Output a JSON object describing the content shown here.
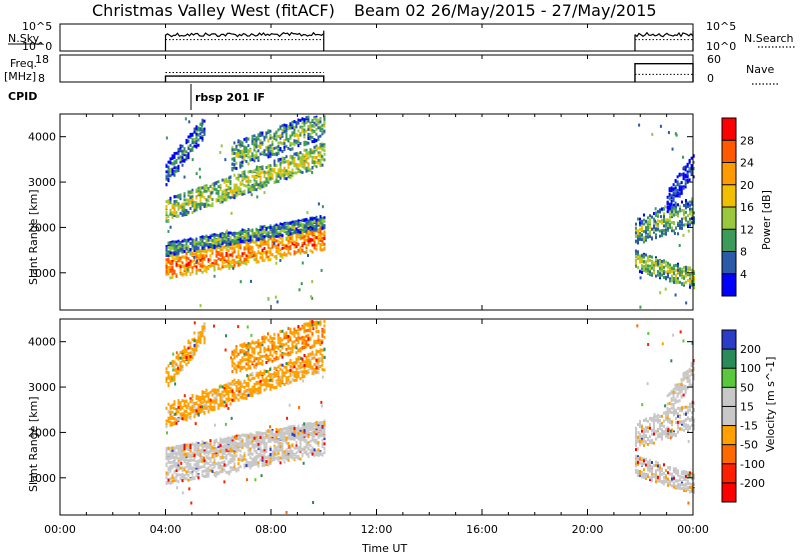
{
  "chart_data": {
    "type": "heatmap",
    "title": "Christmas Valley West (fitACF)",
    "subtitle": "Beam 02 26/May/2015 - 27/May/2015",
    "xlabel": "Time UT",
    "xticks": [
      "00:00",
      "04:00",
      "08:00",
      "12:00",
      "16:00",
      "20:00",
      "00:00"
    ],
    "xlim_hours": [
      0,
      24
    ],
    "cpid_label": "CPID",
    "cpid_text": "rbsp 201 IF",
    "panels": {
      "nsky": {
        "left_label": "N.Sky",
        "right_label": "N.Search",
        "left_ticks": [
          "10^5",
          "10^0"
        ],
        "right_ticks": [
          "10^5",
          "10^0"
        ],
        "segments": [
          {
            "start": 4.0,
            "end": 10.0,
            "level": 0.32
          },
          {
            "start": 21.8,
            "end": 24.0,
            "level": 0.32
          }
        ]
      },
      "freq": {
        "left_label": "Freq.",
        "left_unit": "[MHz]",
        "right_label": "Nave",
        "left_ticks": [
          "18",
          "8"
        ],
        "right_ticks": [
          "60",
          "0"
        ],
        "segments": [
          {
            "start": 4.0,
            "end": 10.0,
            "freq": 10.2,
            "nave": 21
          },
          {
            "start": 21.8,
            "end": 24.0,
            "freq": 14.8,
            "nave": 17
          }
        ]
      },
      "power": {
        "ylabel": "Slant Range [km]",
        "yticks": [
          1000,
          2000,
          3000,
          4000
        ],
        "ylim": [
          180,
          4500
        ],
        "colorbar_label": "Power [dB]",
        "colorbar_ticks": [
          "28",
          "24",
          "20",
          "16",
          "12",
          "8",
          "4"
        ],
        "colorbar_colors": [
          "#ff0000",
          "#ff5a00",
          "#ff9a00",
          "#f0c000",
          "#9ac83c",
          "#3c9a5a",
          "#2a5aa8",
          "#0000ff"
        ],
        "bands": [
          {
            "t0": 4.0,
            "t1": 10.0,
            "r0": 1150,
            "r1": 1800,
            "w": 260,
            "v": 26
          },
          {
            "t0": 4.0,
            "t1": 10.0,
            "r0": 1550,
            "r1": 2150,
            "w": 140,
            "v": 12
          },
          {
            "t0": 4.0,
            "t1": 10.0,
            "r0": 2400,
            "r1": 3650,
            "w": 250,
            "v": 17
          },
          {
            "t0": 6.5,
            "t1": 10.0,
            "r0": 3600,
            "r1": 4300,
            "w": 300,
            "v": 14
          },
          {
            "t0": 4.0,
            "t1": 5.5,
            "r0": 3200,
            "r1": 4300,
            "w": 250,
            "v": 10
          },
          {
            "t0": 21.8,
            "t1": 24.0,
            "r0": 1950,
            "r1": 2400,
            "w": 300,
            "v": 14
          },
          {
            "t0": 21.8,
            "t1": 24.0,
            "r0": 1300,
            "r1": 900,
            "w": 220,
            "v": 16
          },
          {
            "t0": 23.0,
            "t1": 24.0,
            "r0": 2600,
            "r1": 3400,
            "w": 250,
            "v": 6
          }
        ]
      },
      "velocity": {
        "ylabel": "Slant Range [km]",
        "yticks": [
          1000,
          2000,
          3000,
          4000
        ],
        "ylim": [
          180,
          4500
        ],
        "colorbar_label": "Velocity [m s^-1]",
        "colorbar_ticks": [
          "200",
          "100",
          "50",
          "15",
          "-15",
          "-50",
          "-100",
          "-200"
        ],
        "colorbar_colors": [
          "#2a3cc8",
          "#2a8a5a",
          "#5ac83c",
          "#c8c8c8",
          "#c8c8c8",
          "#ffa000",
          "#ff6a00",
          "#ff2000",
          "#ff0000"
        ],
        "bands": [
          {
            "t0": 4.0,
            "t1": 10.0,
            "r0": 1150,
            "r1": 1800,
            "w": 260,
            "v": 0
          },
          {
            "t0": 4.0,
            "t1": 10.0,
            "r0": 1550,
            "r1": 2150,
            "w": 140,
            "v": 0
          },
          {
            "t0": 4.0,
            "t1": 10.0,
            "r0": 2400,
            "r1": 3650,
            "w": 250,
            "v": -30
          },
          {
            "t0": 6.5,
            "t1": 10.0,
            "r0": 3600,
            "r1": 4300,
            "w": 300,
            "v": -40
          },
          {
            "t0": 4.0,
            "t1": 5.5,
            "r0": 3200,
            "r1": 4300,
            "w": 250,
            "v": -30
          },
          {
            "t0": 21.8,
            "t1": 24.0,
            "r0": 1950,
            "r1": 2400,
            "w": 300,
            "v": 0
          },
          {
            "t0": 21.8,
            "t1": 24.0,
            "r0": 1300,
            "r1": 900,
            "w": 220,
            "v": 0
          },
          {
            "t0": 23.0,
            "t1": 24.0,
            "r0": 2600,
            "r1": 3400,
            "w": 250,
            "v": 0
          }
        ]
      }
    }
  }
}
